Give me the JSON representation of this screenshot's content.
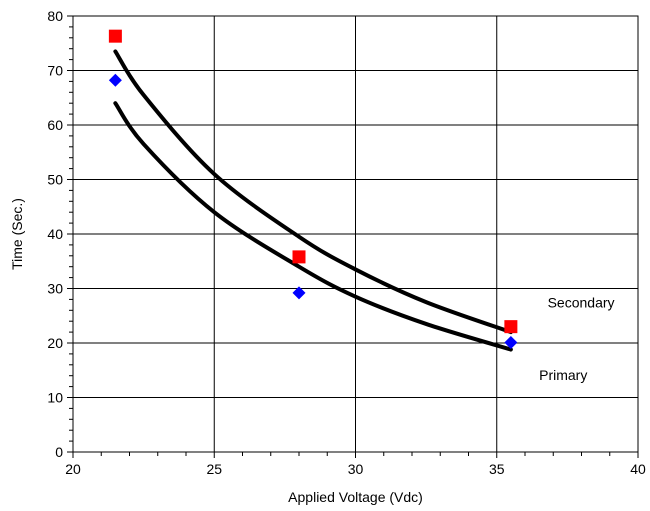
{
  "chart_data": {
    "type": "scatter",
    "title": "",
    "xlabel": "Applied Voltage (Vdc)",
    "ylabel": "Time (Sec.)",
    "xlim": [
      20,
      40
    ],
    "ylim": [
      0,
      80
    ],
    "xticks": [
      20,
      25,
      30,
      35,
      40
    ],
    "yticks": [
      0,
      10,
      20,
      30,
      40,
      50,
      60,
      70,
      80
    ],
    "grid": true,
    "legend": "none",
    "series": [
      {
        "label": "Secondary",
        "marker": "square",
        "color": "#ff0000",
        "points": [
          [
            21.5,
            76.3
          ],
          [
            28.0,
            35.8
          ],
          [
            35.5,
            23.0
          ]
        ]
      },
      {
        "label": "Primary",
        "marker": "diamond",
        "color": "#0000ff",
        "points": [
          [
            21.5,
            68.2
          ],
          [
            28.0,
            29.2
          ],
          [
            35.5,
            20.1
          ]
        ]
      }
    ],
    "fit_curves": [
      {
        "label": "Secondary",
        "color": "#000000",
        "points": [
          [
            21.5,
            73.5
          ],
          [
            22.5,
            65.5
          ],
          [
            25.0,
            51.0
          ],
          [
            28.0,
            39.5
          ],
          [
            30.0,
            33.5
          ],
          [
            32.5,
            27.5
          ],
          [
            35.5,
            22.0
          ]
        ]
      },
      {
        "label": "Primary",
        "color": "#000000",
        "points": [
          [
            21.5,
            64.0
          ],
          [
            22.5,
            56.5
          ],
          [
            25.0,
            44.0
          ],
          [
            28.0,
            34.0
          ],
          [
            30.0,
            28.5
          ],
          [
            32.5,
            23.5
          ],
          [
            35.5,
            18.8
          ]
        ]
      }
    ],
    "annotations": [
      {
        "text": "Secondary",
        "x": 36.8,
        "y": 26.5
      },
      {
        "text": "Primary",
        "x": 36.5,
        "y": 13.2
      }
    ]
  }
}
